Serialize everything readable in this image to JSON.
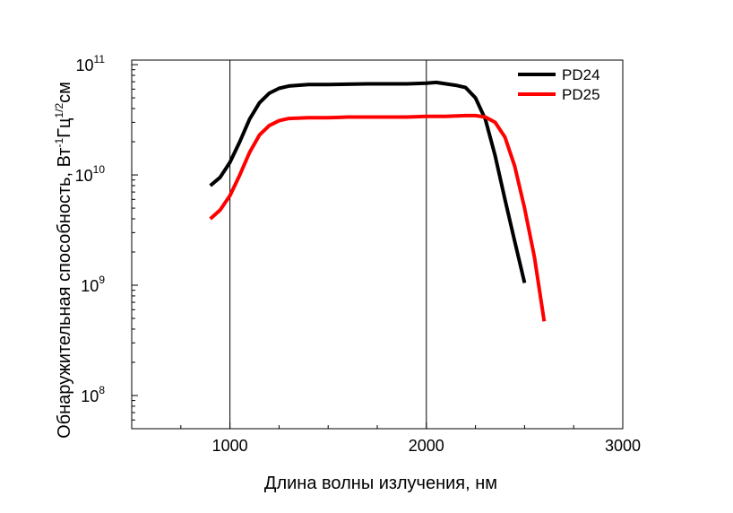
{
  "chart_data": {
    "type": "line",
    "title": "",
    "xlabel": "Длина волны излучения, нм",
    "ylabel": {
      "prefix": "Обнаружительная способность, Вт",
      "sup1": "-1",
      "mid": "Гц",
      "sup2": "1/2",
      "suffix": "см"
    },
    "xlim": [
      500,
      3000
    ],
    "ylim": [
      50000000.0,
      110000000000.0
    ],
    "y_scale": "log",
    "grid": "vertical",
    "legend_position": "top-right",
    "x_ticks": [
      {
        "value": 1000,
        "label": "1000"
      },
      {
        "value": 2000,
        "label": "2000"
      },
      {
        "value": 3000,
        "label": "3000"
      }
    ],
    "y_ticks": [
      {
        "value": 100000000.0,
        "base": "10",
        "exp": "8"
      },
      {
        "value": 1000000000.0,
        "base": "10",
        "exp": "9"
      },
      {
        "value": 10000000000.0,
        "base": "10",
        "exp": "10"
      },
      {
        "value": 100000000000.0,
        "base": "10",
        "exp": "11"
      }
    ],
    "series": [
      {
        "name": "PD24",
        "color": "#000000",
        "points": [
          [
            900,
            8000000000.0
          ],
          [
            950,
            9500000000.0
          ],
          [
            1000,
            13000000000.0
          ],
          [
            1050,
            20000000000.0
          ],
          [
            1100,
            32000000000.0
          ],
          [
            1150,
            45000000000.0
          ],
          [
            1200,
            55000000000.0
          ],
          [
            1250,
            61000000000.0
          ],
          [
            1300,
            64000000000.0
          ],
          [
            1400,
            66000000000.0
          ],
          [
            1500,
            66000000000.0
          ],
          [
            1600,
            66500000000.0
          ],
          [
            1700,
            67000000000.0
          ],
          [
            1800,
            67000000000.0
          ],
          [
            1900,
            67000000000.0
          ],
          [
            2000,
            68000000000.0
          ],
          [
            2050,
            69000000000.0
          ],
          [
            2100,
            67000000000.0
          ],
          [
            2150,
            65000000000.0
          ],
          [
            2200,
            62000000000.0
          ],
          [
            2250,
            50000000000.0
          ],
          [
            2300,
            32000000000.0
          ],
          [
            2350,
            15000000000.0
          ],
          [
            2400,
            6000000000.0
          ],
          [
            2450,
            2500000000.0
          ],
          [
            2500,
            1050000000.0
          ]
        ]
      },
      {
        "name": "PD25",
        "color": "#ff0000",
        "points": [
          [
            900,
            4000000000.0
          ],
          [
            950,
            4800000000.0
          ],
          [
            1000,
            6500000000.0
          ],
          [
            1050,
            10000000000.0
          ],
          [
            1100,
            16000000000.0
          ],
          [
            1150,
            23000000000.0
          ],
          [
            1200,
            28000000000.0
          ],
          [
            1250,
            31000000000.0
          ],
          [
            1300,
            32500000000.0
          ],
          [
            1400,
            33000000000.0
          ],
          [
            1500,
            33000000000.0
          ],
          [
            1600,
            33500000000.0
          ],
          [
            1700,
            33500000000.0
          ],
          [
            1800,
            33500000000.0
          ],
          [
            1900,
            33500000000.0
          ],
          [
            2000,
            34000000000.0
          ],
          [
            2100,
            34000000000.0
          ],
          [
            2200,
            34500000000.0
          ],
          [
            2250,
            34500000000.0
          ],
          [
            2300,
            33500000000.0
          ],
          [
            2350,
            30000000000.0
          ],
          [
            2400,
            22000000000.0
          ],
          [
            2450,
            12000000000.0
          ],
          [
            2500,
            5000000000.0
          ],
          [
            2550,
            1800000000.0
          ],
          [
            2600,
            470000000.0
          ]
        ]
      }
    ]
  }
}
